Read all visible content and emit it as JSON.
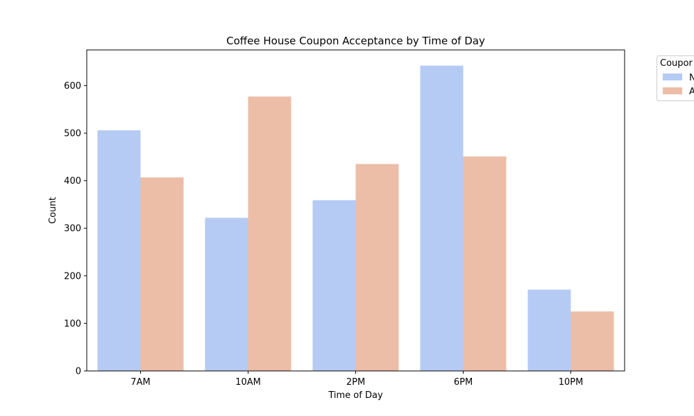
{
  "chart_data": {
    "type": "bar",
    "title": "Coffee House Coupon Acceptance by Time of Day",
    "xlabel": "Time of Day",
    "ylabel": "Count",
    "categories": [
      "7AM",
      "10AM",
      "2PM",
      "6PM",
      "10PM"
    ],
    "series": [
      {
        "name": "N",
        "color": "#b5cbf4",
        "values": [
          506,
          322,
          359,
          642,
          171
        ]
      },
      {
        "name": "A",
        "color": "#ecbda7",
        "values": [
          407,
          577,
          435,
          451,
          125
        ]
      }
    ],
    "ylim": [
      0,
      675
    ],
    "yticks": [
      0,
      100,
      200,
      300,
      400,
      500,
      600
    ],
    "grid": false,
    "legend": {
      "title": "Coupor",
      "placement": "outside-top-right"
    }
  }
}
